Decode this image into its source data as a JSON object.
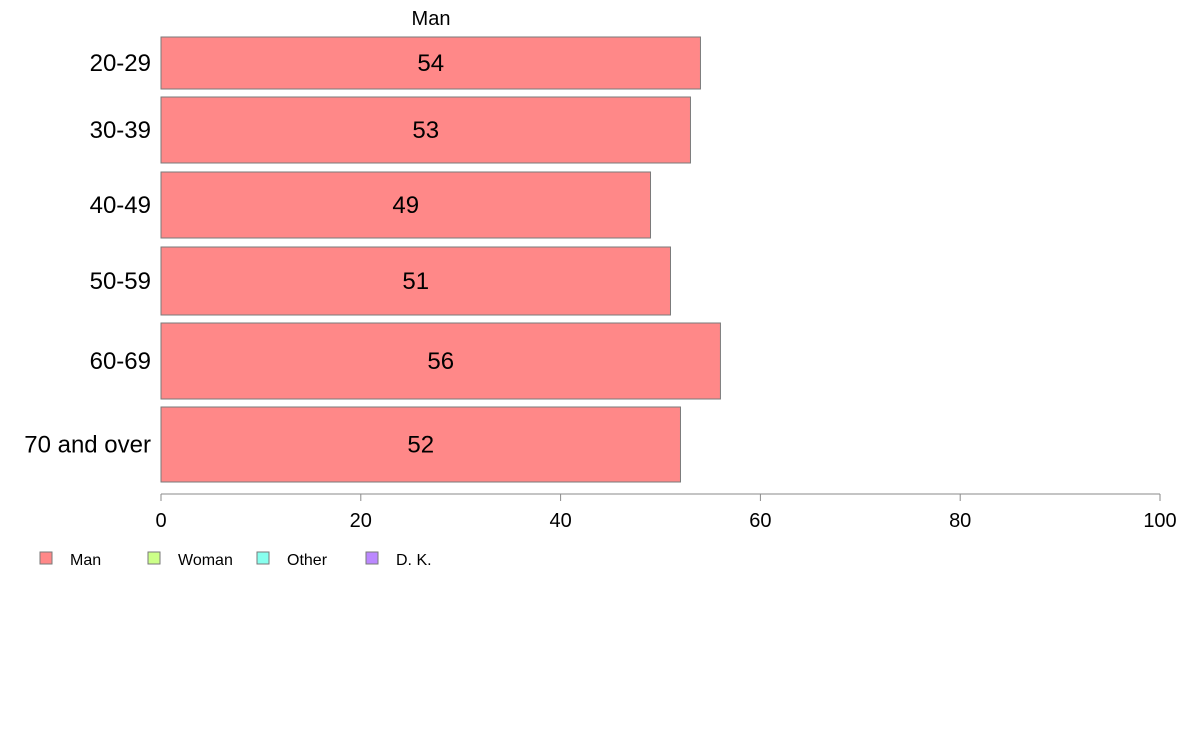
{
  "chart_data": {
    "type": "bar",
    "orientation": "horizontal",
    "title": "",
    "xlabel": "",
    "ylabel": "",
    "categories": [
      "20-29",
      "30-39",
      "40-49",
      "50-59",
      "60-69",
      "70 and over"
    ],
    "series": [
      {
        "name": "Man",
        "values": [
          54,
          53,
          49,
          51,
          56,
          52
        ],
        "color": "#ff8888"
      }
    ],
    "xlim": [
      0,
      100
    ],
    "xticks": [
      0,
      20,
      40,
      60,
      80,
      100
    ],
    "grid": false,
    "legend": {
      "position": "bottom-left",
      "entries": [
        {
          "label": "Man",
          "color": "#ff8888"
        },
        {
          "label": "Woman",
          "color": "#ccff88"
        },
        {
          "label": "Other",
          "color": "#88ffee"
        },
        {
          "label": "D. K.",
          "color": "#bb88ff"
        }
      ]
    }
  }
}
